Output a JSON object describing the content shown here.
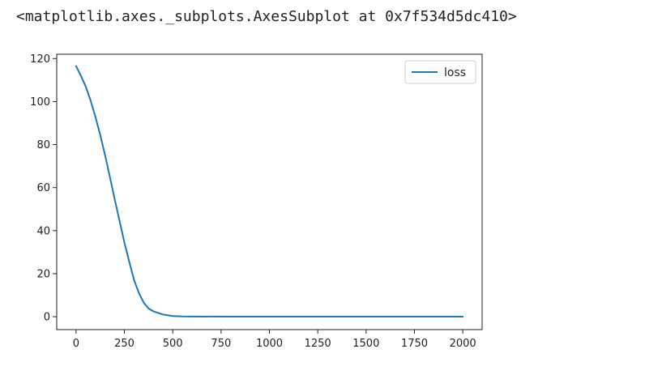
{
  "output_repr": "<matplotlib.axes._subplots.AxesSubplot at 0x7f534d5dc410>",
  "chart_data": {
    "type": "line",
    "title": "",
    "xlabel": "",
    "ylabel": "",
    "xlim": [
      -100,
      2100
    ],
    "ylim": [
      -6,
      122
    ],
    "xticks": [
      0,
      250,
      500,
      750,
      1000,
      1250,
      1500,
      1750,
      2000
    ],
    "yticks": [
      0,
      20,
      40,
      60,
      80,
      100,
      120
    ],
    "grid": false,
    "legend": "top-right",
    "series": [
      {
        "name": "loss",
        "color": "#1f77b4",
        "x": [
          0,
          25,
          50,
          75,
          100,
          125,
          150,
          175,
          200,
          225,
          250,
          275,
          300,
          325,
          350,
          375,
          400,
          450,
          500,
          550,
          600,
          800,
          1000,
          1250,
          1500,
          1750,
          2000
        ],
        "y": [
          116.5,
          112,
          107,
          100.5,
          93,
          84.5,
          75,
          65,
          54.5,
          44.5,
          34.5,
          25.5,
          17,
          11,
          6.5,
          3.8,
          2.5,
          1.0,
          0.3,
          0.1,
          0.05,
          0.02,
          0.01,
          0.01,
          0.01,
          0.01,
          0.01
        ]
      }
    ]
  }
}
